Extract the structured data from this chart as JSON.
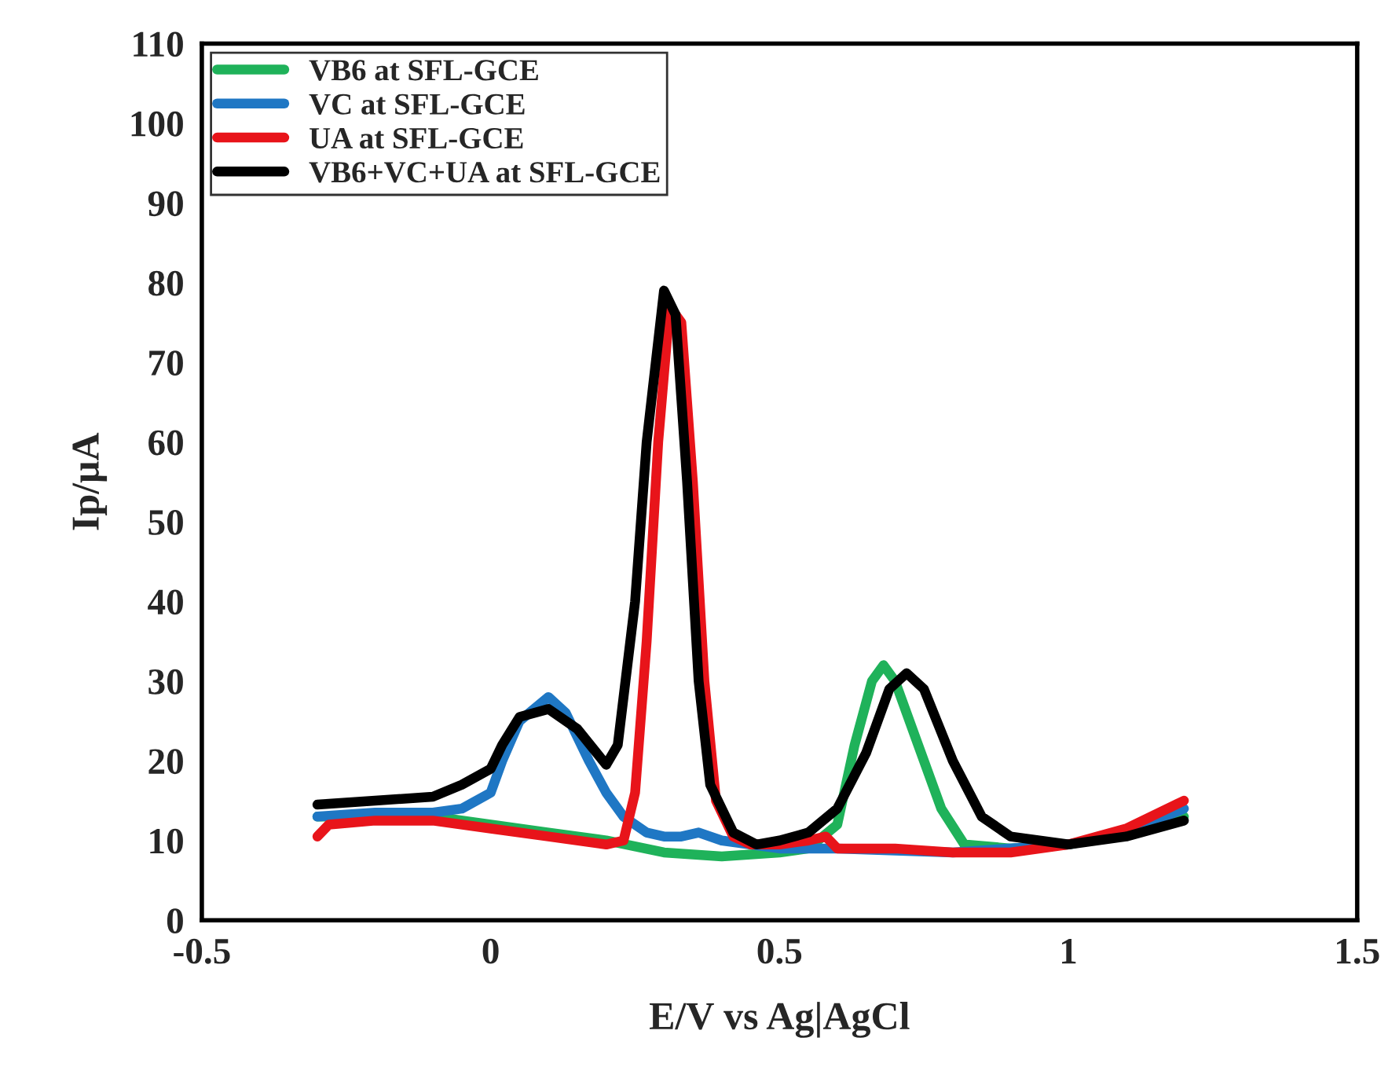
{
  "chart_data": {
    "type": "line",
    "xlabel": "E/V vs Ag|AgCl",
    "ylabel": "Ip/μA",
    "xlim": [
      -0.5,
      1.5
    ],
    "xticks": [
      -0.5,
      0,
      0.5,
      1,
      1.5
    ],
    "ylim": [
      0,
      110
    ],
    "yticks": [
      0,
      10,
      20,
      30,
      40,
      50,
      60,
      70,
      80,
      90,
      100,
      110
    ],
    "grid": false,
    "legend": "top left",
    "marker": "none",
    "line_style": "solid",
    "series": [
      {
        "name": "VB6 at SFL-GCE",
        "color": "#1fb25a",
        "x": [
          -0.3,
          -0.2,
          -0.1,
          0,
          0.1,
          0.2,
          0.3,
          0.4,
          0.5,
          0.55,
          0.6,
          0.63,
          0.66,
          0.68,
          0.7,
          0.74,
          0.78,
          0.82,
          0.9,
          1.0,
          1.1,
          1.2
        ],
        "values": [
          13,
          13,
          13,
          12,
          11,
          10,
          8.5,
          8,
          8.5,
          9,
          12,
          22,
          30,
          32,
          30,
          22,
          14,
          9.5,
          9,
          9.5,
          11,
          13
        ]
      },
      {
        "name": "VC at SFL-GCE",
        "color": "#1f77c4",
        "x": [
          -0.3,
          -0.2,
          -0.1,
          -0.05,
          0,
          0.02,
          0.05,
          0.1,
          0.13,
          0.17,
          0.2,
          0.23,
          0.27,
          0.3,
          0.33,
          0.36,
          0.4,
          0.45,
          0.5,
          0.6,
          0.8,
          1.0,
          1.1,
          1.2
        ],
        "values": [
          13,
          13.5,
          13.5,
          14,
          16,
          20,
          25,
          28,
          26,
          20,
          16,
          13,
          11,
          10.5,
          10.5,
          11,
          10,
          9.5,
          9,
          9,
          8.5,
          9.5,
          11,
          14
        ]
      },
      {
        "name": "UA at SFL-GCE",
        "color": "#e8141a",
        "x": [
          -0.3,
          -0.28,
          -0.2,
          -0.1,
          0,
          0.1,
          0.2,
          0.23,
          0.25,
          0.27,
          0.29,
          0.31,
          0.33,
          0.35,
          0.37,
          0.39,
          0.42,
          0.45,
          0.5,
          0.55,
          0.58,
          0.6,
          0.7,
          0.8,
          0.9,
          1.0,
          1.1,
          1.2
        ],
        "values": [
          10.5,
          12,
          12.5,
          12.5,
          11.5,
          10.5,
          9.5,
          10,
          16,
          35,
          60,
          77,
          75,
          55,
          30,
          15,
          10.5,
          9.5,
          9.5,
          10,
          10.5,
          9,
          9,
          8.5,
          8.5,
          9.5,
          11.5,
          15
        ]
      },
      {
        "name": "VB6+VC+UA at SFL-GCE",
        "color": "#000000",
        "x": [
          -0.3,
          -0.2,
          -0.1,
          -0.05,
          0,
          0.02,
          0.05,
          0.1,
          0.15,
          0.2,
          0.22,
          0.25,
          0.27,
          0.3,
          0.32,
          0.34,
          0.36,
          0.38,
          0.42,
          0.46,
          0.5,
          0.55,
          0.6,
          0.65,
          0.69,
          0.72,
          0.75,
          0.8,
          0.85,
          0.9,
          1.0,
          1.1,
          1.2
        ],
        "values": [
          14.5,
          15,
          15.5,
          17,
          19,
          22,
          25.5,
          26.5,
          24,
          19.5,
          22,
          40,
          60,
          79,
          76,
          55,
          30,
          17,
          11,
          9.5,
          10,
          11,
          14,
          21,
          29,
          31,
          29,
          20,
          13,
          10.5,
          9.5,
          10.5,
          12.5
        ]
      }
    ]
  }
}
